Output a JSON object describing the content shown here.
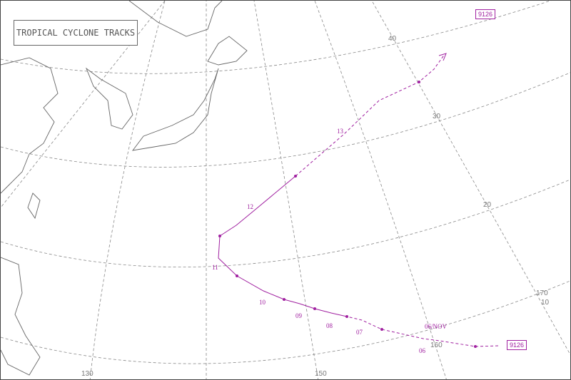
{
  "title": "TROPICAL CYCLONE TRACKS",
  "storm_id": "9126",
  "track_color": "#a020a0",
  "grid_labels": {
    "lat": [
      "40",
      "30",
      "20",
      "10"
    ],
    "lon": [
      "130",
      "150",
      "160",
      "170"
    ]
  },
  "date_labels": [
    "06/NOV",
    "06",
    "07",
    "08",
    "09",
    "10",
    "11",
    "12",
    "13"
  ]
}
